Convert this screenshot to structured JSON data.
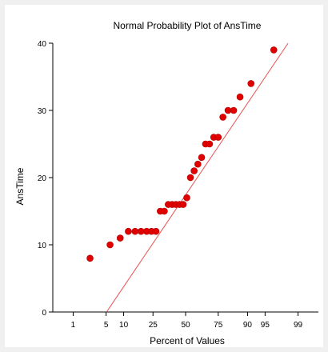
{
  "chart_data": {
    "type": "scatter",
    "title": "Normal Probability Plot of AnsTime",
    "xlabel": "Percent of Values",
    "ylabel": "AnsTime",
    "xscale": "normal-probability",
    "x_ticks": [
      1,
      5,
      10,
      25,
      50,
      75,
      90,
      95,
      99
    ],
    "y_ticks": [
      0,
      10,
      20,
      30,
      40
    ],
    "ylim": [
      0,
      40
    ],
    "xlim": [
      0.3,
      99.7
    ],
    "grid": false,
    "point_color": "#e00000",
    "line_color": "#e85050",
    "reference_line": [
      {
        "x": 5.1,
        "y": 0
      },
      {
        "x": 98.3,
        "y": 40
      }
    ],
    "points": [
      {
        "x": 2.4,
        "y": 8
      },
      {
        "x": 5.9,
        "y": 10
      },
      {
        "x": 8.8,
        "y": 11
      },
      {
        "x": 11.8,
        "y": 12
      },
      {
        "x": 14.8,
        "y": 12
      },
      {
        "x": 17.8,
        "y": 12
      },
      {
        "x": 21.0,
        "y": 12
      },
      {
        "x": 24.0,
        "y": 12
      },
      {
        "x": 27.0,
        "y": 12
      },
      {
        "x": 30.0,
        "y": 15
      },
      {
        "x": 33.0,
        "y": 15
      },
      {
        "x": 36.0,
        "y": 16
      },
      {
        "x": 39.0,
        "y": 16
      },
      {
        "x": 42.0,
        "y": 16
      },
      {
        "x": 45.0,
        "y": 16
      },
      {
        "x": 48.0,
        "y": 16
      },
      {
        "x": 51.0,
        "y": 17
      },
      {
        "x": 54.0,
        "y": 20
      },
      {
        "x": 57.0,
        "y": 21
      },
      {
        "x": 60.0,
        "y": 22
      },
      {
        "x": 63.0,
        "y": 23
      },
      {
        "x": 66.0,
        "y": 25
      },
      {
        "x": 69.0,
        "y": 25
      },
      {
        "x": 72.0,
        "y": 26
      },
      {
        "x": 75.0,
        "y": 26
      },
      {
        "x": 78.0,
        "y": 29
      },
      {
        "x": 81.0,
        "y": 30
      },
      {
        "x": 84.0,
        "y": 30
      },
      {
        "x": 87.0,
        "y": 32
      },
      {
        "x": 91.2,
        "y": 34
      },
      {
        "x": 96.6,
        "y": 39
      }
    ]
  }
}
